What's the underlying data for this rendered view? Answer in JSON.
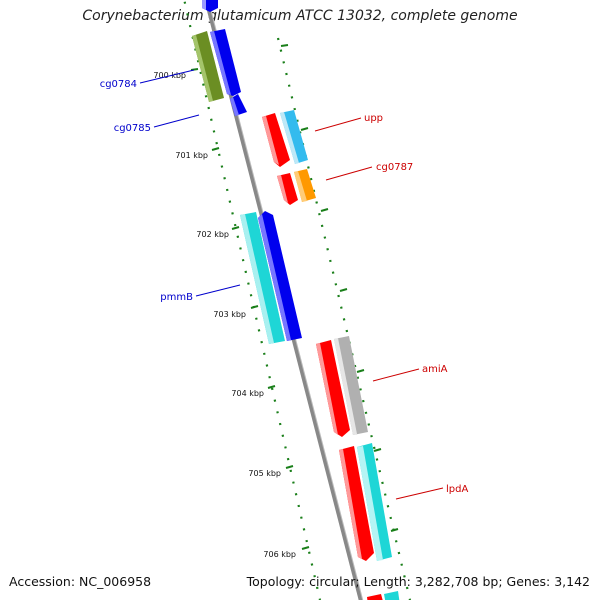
{
  "title": "Corynebacterium glutamicum ATCC 13032, complete genome",
  "footer": {
    "accession": "Accession: NC_006958",
    "topology": "Topology: circular",
    "length": "Length: 3,282,708 bp",
    "genes": "Genes: 3,142",
    "separator": "; "
  },
  "scale": {
    "ticks": [
      {
        "label": "700 kbp"
      },
      {
        "label": "701 kbp"
      },
      {
        "label": "702 kbp"
      },
      {
        "label": "703 kbp"
      },
      {
        "label": "704 kbp"
      },
      {
        "label": "705 kbp"
      },
      {
        "label": "706 kbp"
      }
    ]
  },
  "genes": [
    {
      "name": "cg0784",
      "labeled": true,
      "color": "#0000cc"
    },
    {
      "name": "cg0785",
      "labeled": true,
      "color": "#0000cc"
    },
    {
      "name": "pmmB",
      "labeled": true,
      "color": "#0000cc"
    },
    {
      "name": "upp",
      "labeled": true,
      "color": "#cc0000"
    },
    {
      "name": "cg0787",
      "labeled": true,
      "color": "#cc0000"
    },
    {
      "name": "amiA",
      "labeled": true,
      "color": "#cc0000"
    },
    {
      "name": "lpdA",
      "labeled": true,
      "color": "#cc0000"
    }
  ],
  "colors": {
    "backbone": "#888888",
    "tick_dots": "#1a7f1a",
    "blue_gene": "#0000ee",
    "red_gene": "#ff0000",
    "cyan_gene": "#1ed6d6",
    "olive_gene": "#6b8e23",
    "orange_gene": "#ff9900",
    "gray_gene": "#b0b0b0",
    "skyblue_gene": "#33bbee"
  }
}
